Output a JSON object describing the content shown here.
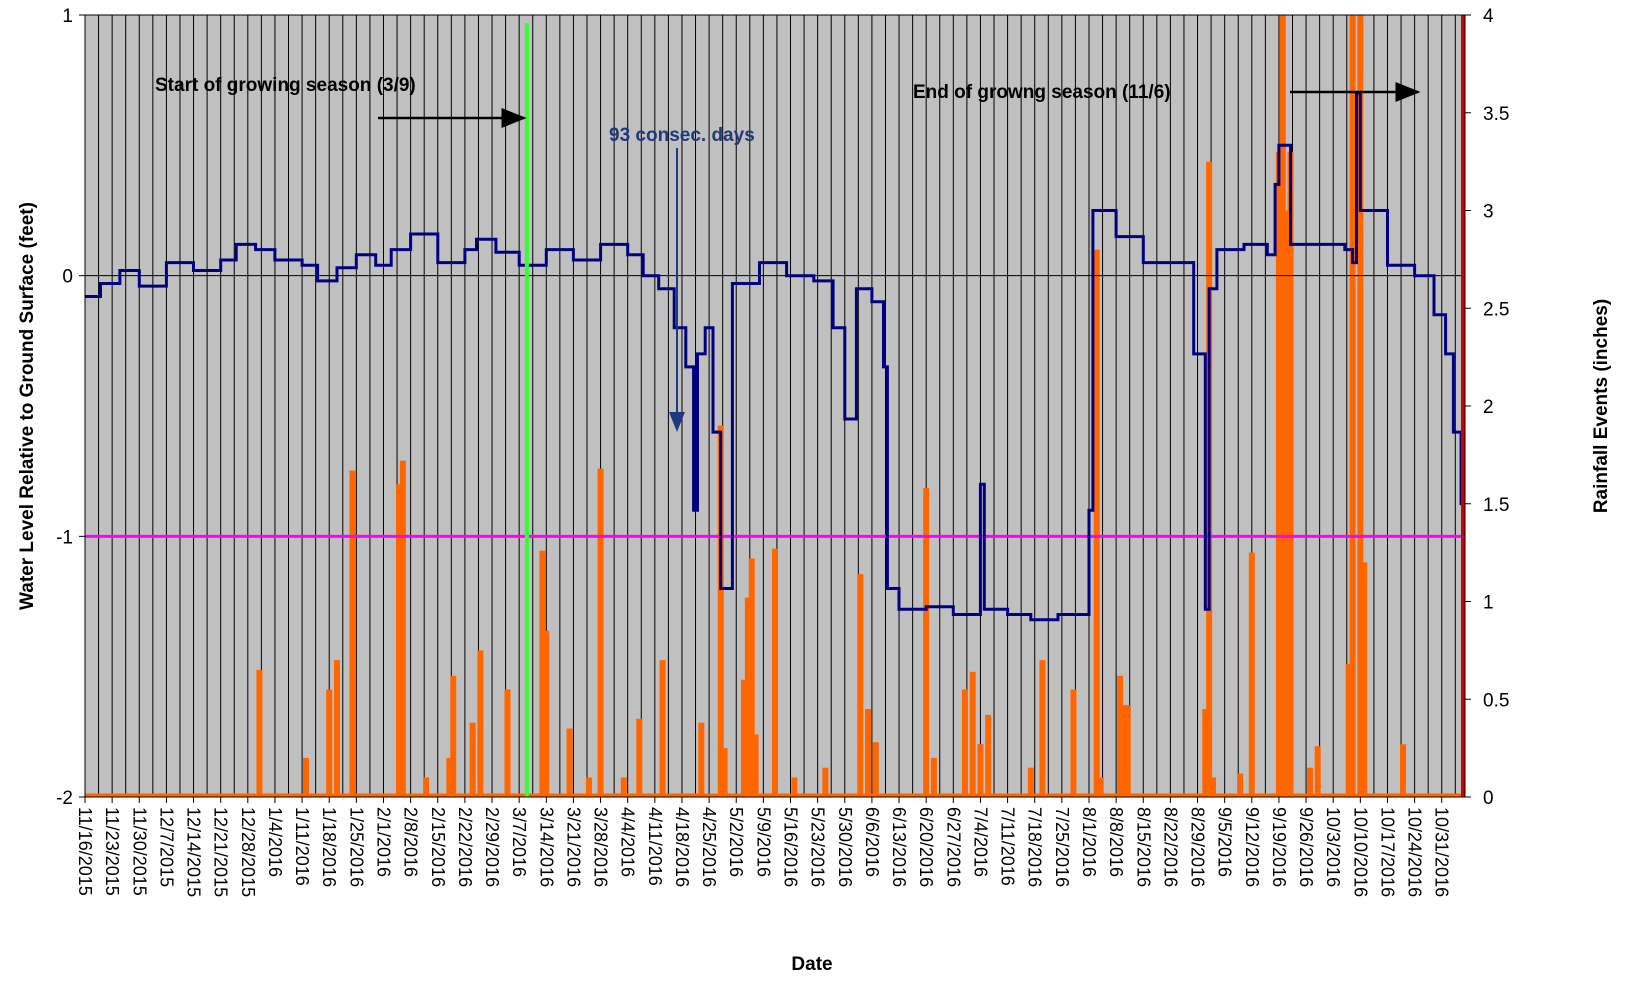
{
  "chart_data": {
    "type": "line",
    "xlabel": "Date",
    "ylabel_left": "Water Level Relative to Ground Surface (feet)",
    "ylabel_right": "Rainfall Events (inches)",
    "ylim_left": [
      -2,
      1
    ],
    "ylim_right": [
      0,
      4
    ],
    "yticks_left": [
      "-2",
      "-1",
      "0",
      "1"
    ],
    "yticks_right": [
      "0",
      "0.5",
      "1",
      "1.5",
      "2",
      "2.5",
      "3",
      "3.5",
      "4"
    ],
    "x_start": "11/16/2015",
    "x_end": "11/6/2016",
    "x_tick_labels": [
      "11/16/2015",
      "11/23/2015",
      "11/30/2015",
      "12/7/2015",
      "12/14/2015",
      "12/21/2015",
      "12/28/2015",
      "1/4/2016",
      "1/11/2016",
      "1/18/2016",
      "1/25/2016",
      "2/1/2016",
      "2/8/2016",
      "2/15/2016",
      "2/22/2016",
      "2/29/2016",
      "3/7/2016",
      "3/14/2016",
      "3/21/2016",
      "3/28/2016",
      "4/4/2016",
      "4/11/2016",
      "4/18/2016",
      "4/25/2016",
      "5/2/2016",
      "5/9/2016",
      "5/16/2016",
      "5/23/2016",
      "5/30/2016",
      "6/6/2016",
      "6/13/2016",
      "6/20/2016",
      "6/27/2016",
      "7/4/2016",
      "7/11/2016",
      "7/18/2016",
      "7/25/2016",
      "8/1/2016",
      "8/8/2016",
      "8/15/2016",
      "8/22/2016",
      "8/29/2016",
      "9/5/2016",
      "9/12/2016",
      "9/19/2016",
      "9/26/2016",
      "10/3/2016",
      "10/10/2016",
      "10/17/2016",
      "10/24/2016",
      "10/31/2016"
    ],
    "grid": "vertical",
    "series": [
      {
        "axis": "left",
        "color": "#000080",
        "x": [
          "11/16/2015",
          "11/20/2015",
          "11/25/2015",
          "11/30/2015",
          "12/7/2015",
          "12/14/2015",
          "12/21/2015",
          "12/25/2015",
          "12/30/2015",
          "1/4/2016",
          "1/11/2016",
          "1/15/2016",
          "1/20/2016",
          "1/25/2016",
          "1/30/2016",
          "2/3/2016",
          "2/8/2016",
          "2/15/2016",
          "2/22/2016",
          "2/25/2016",
          "3/1/2016",
          "3/7/2016",
          "3/14/2016",
          "3/21/2016",
          "3/28/2016",
          "4/4/2016",
          "4/8/2016",
          "4/12/2016",
          "4/16/2016",
          "4/19/2016",
          "4/21/2016",
          "4/22/2016",
          "4/24/2016",
          "4/26/2016",
          "4/28/2016",
          "5/1/2016",
          "5/8/2016",
          "5/15/2016",
          "5/22/2016",
          "5/27/2016",
          "5/30/2016",
          "6/2/2016",
          "6/6/2016",
          "6/9/2016",
          "6/10/2016",
          "6/13/2016",
          "6/20/2016",
          "6/27/2016",
          "7/3/2016",
          "7/4/2016",
          "7/5/2016",
          "7/11/2016",
          "7/17/2016",
          "7/24/2016",
          "7/31/2016",
          "8/1/2016",
          "8/2/2016",
          "8/8/2016",
          "8/15/2016",
          "8/22/2016",
          "8/28/2016",
          "8/31/2016",
          "9/1/2016",
          "9/3/2016",
          "9/10/2016",
          "9/16/2016",
          "9/18/2016",
          "9/19/2016",
          "9/22/2016",
          "9/29/2016",
          "10/6/2016",
          "10/8/2016",
          "10/9/2016",
          "10/10/2016",
          "10/17/2016",
          "10/24/2016",
          "10/29/2016",
          "11/1/2016",
          "11/3/2016",
          "11/5/2016"
        ],
        "y": [
          -0.08,
          -0.03,
          0.02,
          -0.04,
          0.05,
          0.02,
          0.06,
          0.12,
          0.1,
          0.06,
          0.04,
          -0.02,
          0.03,
          0.08,
          0.04,
          0.1,
          0.16,
          0.05,
          0.1,
          0.14,
          0.09,
          0.04,
          0.1,
          0.06,
          0.12,
          0.08,
          0.0,
          -0.05,
          -0.2,
          -0.35,
          -0.9,
          -0.3,
          -0.2,
          -0.6,
          -1.2,
          -0.03,
          0.05,
          0.0,
          -0.02,
          -0.2,
          -0.55,
          -0.05,
          -0.1,
          -0.35,
          -1.2,
          -1.28,
          -1.27,
          -1.3,
          -1.3,
          -0.8,
          -1.28,
          -1.3,
          -1.32,
          -1.3,
          -1.3,
          -0.9,
          0.25,
          0.15,
          0.05,
          0.05,
          -0.3,
          -1.28,
          -0.05,
          0.1,
          0.12,
          0.08,
          0.35,
          0.5,
          0.12,
          0.12,
          0.1,
          0.05,
          0.7,
          0.25,
          0.04,
          0.0,
          -0.15,
          -0.3,
          -0.6,
          -0.88
        ]
      },
      {
        "axis": "right",
        "type": "bar",
        "color": "#FF6600",
        "x": [
          "12/31/2015",
          "1/12/2016",
          "1/18/2016",
          "1/20/2016",
          "1/24/2016",
          "2/5/2016",
          "2/6/2016",
          "2/12/2016",
          "2/18/2016",
          "2/19/2016",
          "2/24/2016",
          "2/26/2016",
          "3/4/2016",
          "3/13/2016",
          "3/14/2016",
          "3/20/2016",
          "3/25/2016",
          "3/28/2016",
          "4/3/2016",
          "4/7/2016",
          "4/13/2016",
          "4/23/2016",
          "4/28/2016",
          "4/29/2016",
          "5/4/2016",
          "5/5/2016",
          "5/6/2016",
          "5/7/2016",
          "5/12/2016",
          "5/17/2016",
          "5/25/2016",
          "6/3/2016",
          "6/5/2016",
          "6/7/2016",
          "6/20/2016",
          "6/22/2016",
          "6/30/2016",
          "7/2/2016",
          "7/4/2016",
          "7/6/2016",
          "7/17/2016",
          "7/20/2016",
          "7/28/2016",
          "8/3/2016",
          "8/4/2016",
          "8/9/2016",
          "8/10/2016",
          "8/11/2016",
          "8/31/2016",
          "9/1/2016",
          "9/2/2016",
          "9/9/2016",
          "9/12/2016",
          "9/19/2016",
          "9/20/2016",
          "9/21/2016",
          "9/22/2016",
          "9/27/2016",
          "9/29/2016",
          "10/7/2016",
          "10/8/2016",
          "10/10/2016",
          "10/11/2016",
          "10/21/2016"
        ],
        "values": [
          0.65,
          0.2,
          0.55,
          0.7,
          1.67,
          1.6,
          1.72,
          0.1,
          0.2,
          0.62,
          0.38,
          0.75,
          0.55,
          1.26,
          0.85,
          0.35,
          0.1,
          1.68,
          0.1,
          0.4,
          0.7,
          0.38,
          1.9,
          0.25,
          0.6,
          1.02,
          1.22,
          0.32,
          1.27,
          0.1,
          0.15,
          1.14,
          0.45,
          0.28,
          1.58,
          0.2,
          0.55,
          0.64,
          0.27,
          0.42,
          0.15,
          0.7,
          0.55,
          2.8,
          0.1,
          0.62,
          0.47,
          0.47,
          0.45,
          3.25,
          0.1,
          0.12,
          1.25,
          3.3,
          4.0,
          3.0,
          3.3,
          0.15,
          0.26,
          0.68,
          4.0,
          4.0,
          1.2,
          0.27
        ]
      }
    ],
    "reference_lines": [
      {
        "axis": "left",
        "orientation": "horizontal",
        "y": -1,
        "color": "#FF00FF"
      },
      {
        "orientation": "vertical",
        "x": "3/9/2016",
        "color": "#33FF33"
      },
      {
        "orientation": "vertical",
        "x": "11/6/2016",
        "color": "#CC0000"
      }
    ],
    "annotations": [
      {
        "text": "Start of growing season (3/9)",
        "color": "#000000"
      },
      {
        "text": "End of growng  season (11/6)",
        "color": "#000000"
      },
      {
        "text": "93 consec. days",
        "color": "#1F3A7A"
      }
    ]
  }
}
